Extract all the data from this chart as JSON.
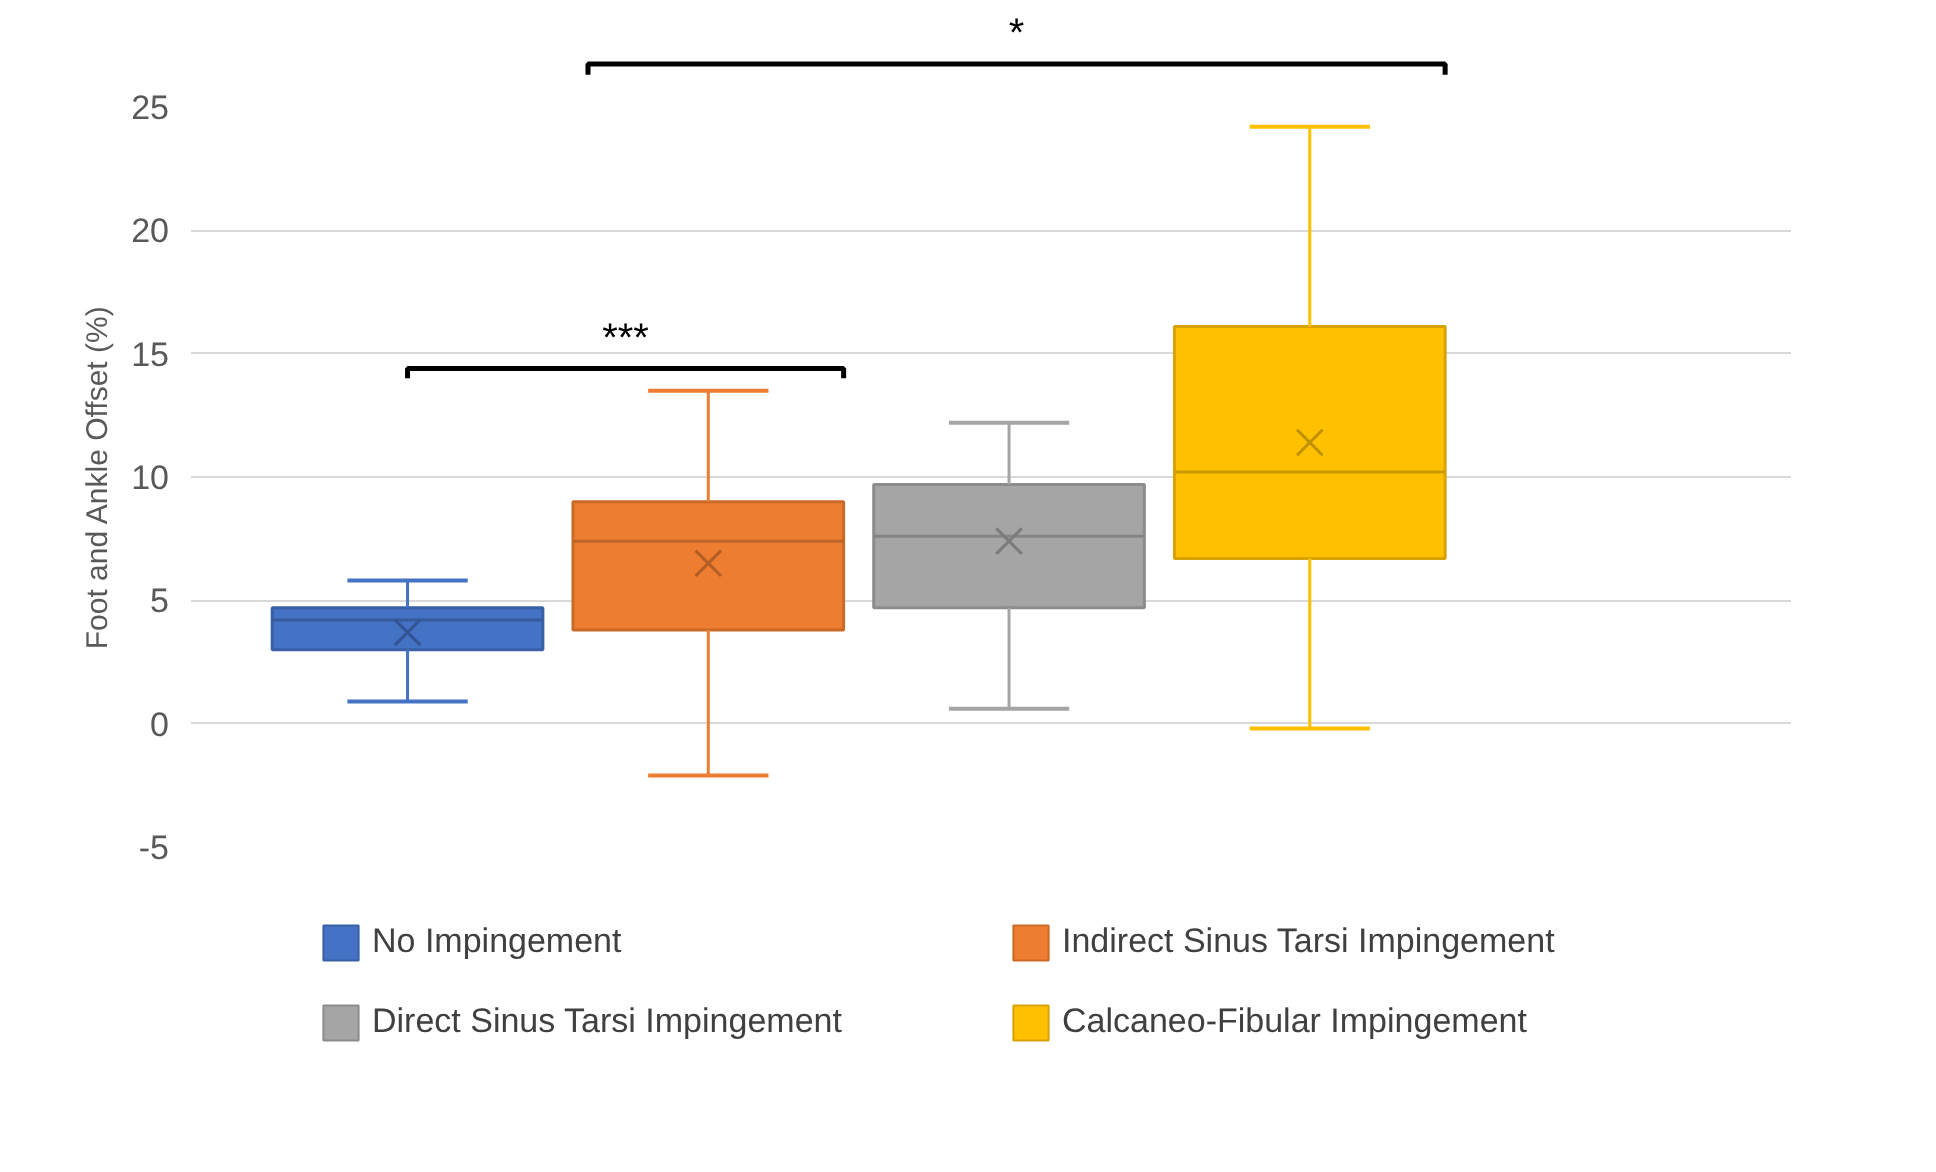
{
  "chart_data": {
    "type": "box",
    "ylabel": "Foot and Ankle Offset (%)",
    "categories": [
      null
    ],
    "series": [
      {
        "name": "No Impingement",
        "color": "#4472c4",
        "boxes": [
          {
            "low": 0.9,
            "q1": 3.0,
            "median": 4.2,
            "q3": 4.7,
            "high": 5.8,
            "mean": 3.7
          }
        ]
      },
      {
        "name": "Indirect Sinus Tarsi Impingement",
        "color": "#ed7d31",
        "boxes": [
          {
            "low": -2.1,
            "q1": 3.8,
            "median": 7.4,
            "q3": 9.0,
            "high": 13.5,
            "mean": 6.5
          }
        ]
      },
      {
        "name": "Direct Sinus Tarsi Impingement",
        "color": "#a5a5a5",
        "boxes": [
          {
            "low": 0.6,
            "q1": 4.7,
            "median": 7.6,
            "q3": 9.7,
            "high": 12.2,
            "mean": 7.4
          }
        ]
      },
      {
        "name": "Calcaneo-Fibular Impingement",
        "color": "#ffc000",
        "boxes": [
          {
            "low": -0.2,
            "q1": 6.7,
            "median": 10.2,
            "q3": 16.1,
            "high": 24.2,
            "mean": 11.4
          }
        ]
      }
    ],
    "annotations": [
      "***",
      "*"
    ],
    "ylim": [
      -5,
      25
    ],
    "yticks": [
      -5,
      0,
      5,
      10,
      15,
      20,
      25
    ],
    "grid": "y",
    "legend": "bottom",
    "marker": "cross"
  }
}
